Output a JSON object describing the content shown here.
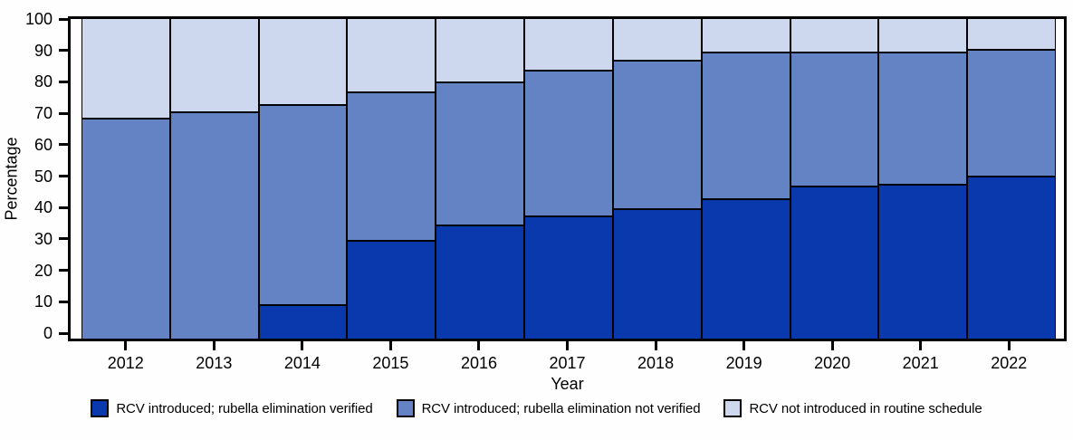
{
  "chart_data": {
    "type": "bar",
    "variant": "stacked-100-percent",
    "title": "",
    "xlabel": "Year",
    "ylabel": "Percentage",
    "ylim": [
      0,
      100
    ],
    "y_ticks": [
      0,
      10,
      20,
      30,
      40,
      50,
      60,
      70,
      80,
      90,
      100
    ],
    "grid": false,
    "legend_position": "bottom",
    "categories": [
      "2012",
      "2013",
      "2014",
      "2015",
      "2016",
      "2017",
      "2018",
      "2019",
      "2020",
      "2021",
      "2022"
    ],
    "series": [
      {
        "name": "RCV introduced; rubella elimination verified",
        "color": "#0a38ad",
        "values": [
          0,
          0,
          10.3,
          30.4,
          35.1,
          38.1,
          40.2,
          43.3,
          47.4,
          47.9,
          50.5
        ]
      },
      {
        "name": "RCV introduced; rubella elimination not verified",
        "color": "#6383c5",
        "values": [
          68.6,
          70.6,
          62.4,
          46.4,
          44.8,
          45.4,
          46.4,
          45.9,
          41.8,
          41.3,
          39.7
        ]
      },
      {
        "name": "RCV not introduced in routine schedule",
        "color": "#cdd8ee",
        "values": [
          31.4,
          29.4,
          27.3,
          23.2,
          20.1,
          16.5,
          13.4,
          10.8,
          10.8,
          10.8,
          9.8
        ]
      }
    ],
    "colors": {
      "axis": "#000000",
      "bar_outline": "#000000",
      "background": "#fdfefd"
    }
  }
}
